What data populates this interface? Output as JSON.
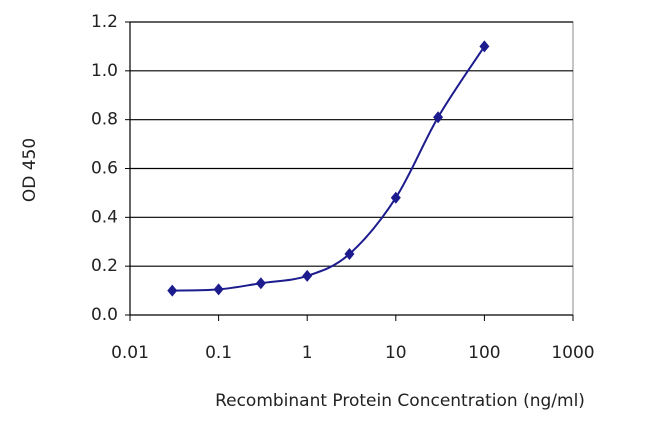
{
  "chart_data": {
    "type": "line",
    "xlabel": "Recombinant Protein Concentration (ng/ml)",
    "ylabel": "OD 450",
    "xscale": "log",
    "grid": true,
    "xlim": [
      0.01,
      1000
    ],
    "xticks": [
      0.01,
      0.1,
      1,
      10,
      100,
      1000
    ],
    "ylim": [
      0,
      1.2
    ],
    "yticks": [
      {
        "value": 0,
        "label": "0.0"
      },
      0.2,
      0.4,
      0.6,
      0.8,
      {
        "value": 1,
        "label": "1.0"
      },
      1.2
    ],
    "x": [
      0.03,
      0.1,
      0.3,
      1,
      3,
      10,
      30,
      100
    ],
    "series": [
      {
        "color": "#1c1c8e",
        "values": [
          0.1,
          0.105,
          0.13,
          0.16,
          0.25,
          0.48,
          0.81,
          1.1
        ]
      }
    ]
  }
}
